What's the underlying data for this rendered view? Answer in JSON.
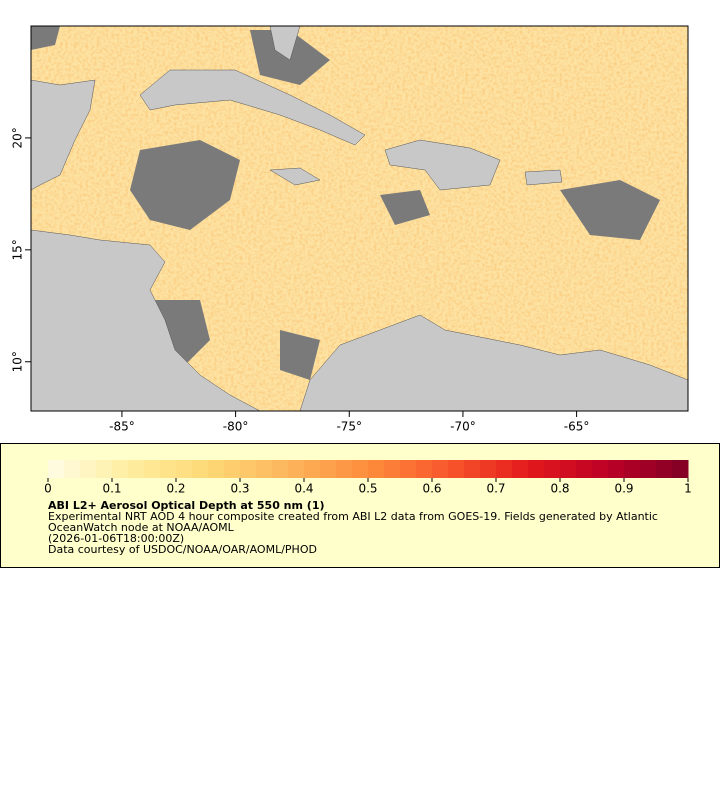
{
  "map": {
    "xlim": [
      -89,
      -60.1
    ],
    "ylim": [
      7.8,
      25
    ],
    "xticks": [
      {
        "value": -85,
        "label": "-85°"
      },
      {
        "value": -80,
        "label": "-80°"
      },
      {
        "value": -75,
        "label": "-75°"
      },
      {
        "value": -70,
        "label": "-70°"
      },
      {
        "value": -65,
        "label": "-65°"
      }
    ],
    "yticks": [
      {
        "value": 10,
        "label": "10°"
      },
      {
        "value": 15,
        "label": "15°"
      },
      {
        "value": 20,
        "label": "20°"
      }
    ]
  },
  "colorbar": {
    "lim": [
      0,
      1
    ],
    "ticks": [
      0,
      0.1,
      0.2,
      0.3,
      0.4,
      0.5,
      0.6,
      0.7,
      0.8,
      0.9,
      1
    ],
    "colors": [
      "#fffde6",
      "#ffeda0",
      "#fed976",
      "#fdb55c",
      "#fd8d3c",
      "#f9572c",
      "#e31a1c",
      "#bd0026",
      "#800026"
    ]
  },
  "legend": {
    "title": "ABI L2+ Aerosol Optical Depth at 550 nm (1)",
    "description": "Experimental NRT AOD 4 hour composite created from ABI L2 data from GOES-19. Fields generated by Atlantic OceanWatch node at NOAA/AOML",
    "time": "(2026-01-06T18:00:00Z)",
    "credit": "Data courtesy of USDOC/NOAA/OAR/AOML/PHOD"
  }
}
